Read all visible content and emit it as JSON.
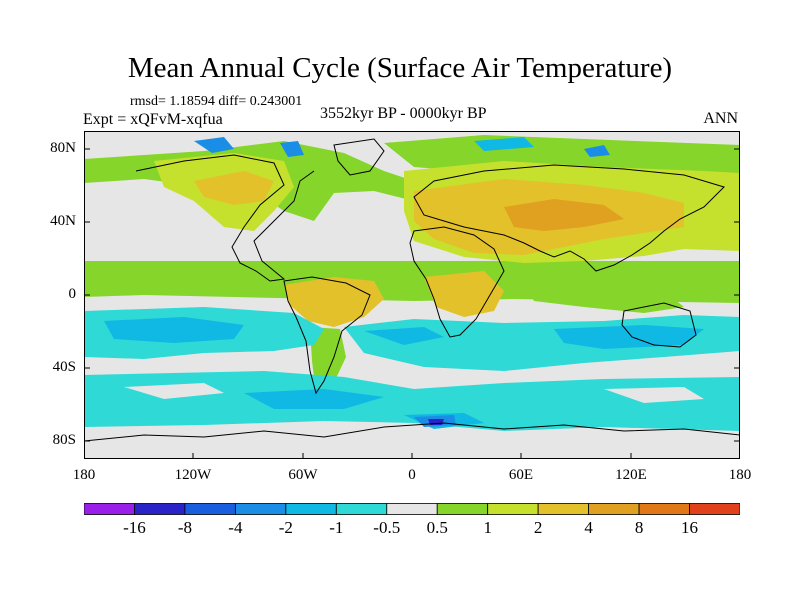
{
  "title": "Mean Annual Cycle (Surface Air Temperature)",
  "stats": "rmsd= 1.18594 diff= 0.243001",
  "experiment": "Expt = xQFvM-xqfua",
  "period": "3552kyr BP - 0000kyr BP",
  "season": "ANN",
  "lat_ticks": [
    "80N",
    "40N",
    "0",
    "40S",
    "80S"
  ],
  "lon_ticks": [
    "180",
    "120W",
    "60W",
    "0",
    "60E",
    "120E",
    "180"
  ],
  "colorbar": {
    "labels": [
      "-16",
      "-8",
      "-4",
      "-2",
      "-1",
      "-0.5",
      "0.5",
      "1",
      "2",
      "4",
      "8",
      "16"
    ],
    "colors": [
      "#9a1fe8",
      "#2a24c8",
      "#1a5ee0",
      "#1a8ee6",
      "#10b8e4",
      "#2fd9d6",
      "#e6e6e6",
      "#86d52a",
      "#c6e02e",
      "#e3c12a",
      "#e0a020",
      "#e07818",
      "#e0401a"
    ]
  },
  "palette": {
    "neutral": "#e6e6e6",
    "light_green": "#86d52a",
    "yellow_green": "#c6e02e",
    "amber": "#e3c12a",
    "orange": "#e0a020",
    "cyan": "#2fd9d6",
    "sky": "#10b8e4",
    "blue": "#1a8ee6",
    "dark_blue": "#2a24c8"
  }
}
